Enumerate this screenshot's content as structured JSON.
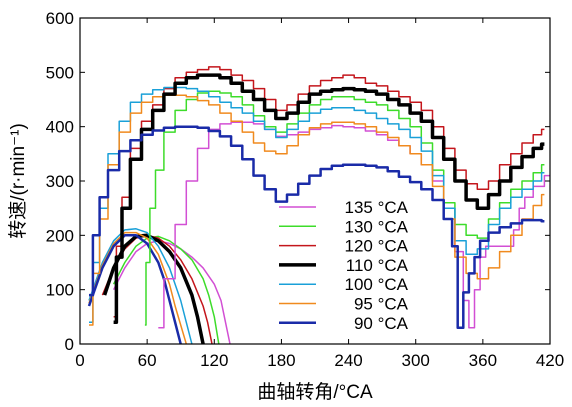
{
  "chart_data": {
    "type": "line",
    "xlabel": "曲轴转角/°CA",
    "ylabel": "转速/(r·min⁻¹)",
    "xlim": [
      0,
      420
    ],
    "ylim": [
      0,
      600
    ],
    "x_ticks": [
      "0",
      "60",
      "120",
      "180",
      "240",
      "300",
      "360",
      "420"
    ],
    "y_ticks": [
      "0",
      "100",
      "200",
      "300",
      "400",
      "500",
      "600"
    ],
    "grid": false,
    "legend_position": "center-right",
    "series": [
      {
        "name": "135 °CA",
        "color": "#d24fd4",
        "width": 1.5,
        "x": [
          70,
          80,
          90,
          100,
          110,
          120,
          130,
          140,
          150,
          160,
          170,
          180,
          190,
          200,
          210,
          220,
          230,
          240,
          250,
          260,
          270,
          280,
          290,
          300,
          310,
          320,
          330,
          340,
          345,
          350,
          355,
          360,
          365,
          370,
          375,
          380,
          385,
          390,
          395,
          400,
          410,
          420
        ],
        "y": [
          30,
          120,
          220,
          300,
          360,
          395,
          405,
          408,
          408,
          405,
          395,
          382,
          385,
          390,
          395,
          398,
          402,
          400,
          398,
          392,
          385,
          375,
          365,
          350,
          330,
          300,
          250,
          170,
          80,
          30,
          100,
          160,
          180,
          180,
          180,
          180,
          180,
          210,
          250,
          270,
          290,
          310
        ]
      },
      {
        "name": "130 °CA",
        "color": "#3ddc2a",
        "width": 1.5,
        "x": [
          58,
          60,
          65,
          70,
          80,
          90,
          100,
          110,
          120,
          130,
          140,
          150,
          160,
          170,
          180,
          190,
          200,
          210,
          220,
          230,
          240,
          250,
          260,
          270,
          280,
          290,
          300,
          310,
          320,
          330,
          340,
          350,
          360,
          370,
          380,
          390,
          400,
          410,
          415
        ],
        "y": [
          35,
          150,
          250,
          320,
          390,
          430,
          450,
          462,
          465,
          462,
          455,
          440,
          420,
          400,
          390,
          405,
          425,
          440,
          450,
          455,
          455,
          450,
          445,
          440,
          430,
          415,
          400,
          370,
          320,
          260,
          220,
          200,
          195,
          230,
          260,
          285,
          300,
          315,
          330
        ]
      },
      {
        "name": "120 °CA",
        "color": "#c4161c",
        "width": 1.5,
        "x": [
          30,
          35,
          40,
          50,
          60,
          70,
          80,
          90,
          100,
          110,
          120,
          130,
          140,
          150,
          160,
          170,
          180,
          190,
          200,
          210,
          220,
          230,
          240,
          250,
          260,
          270,
          280,
          290,
          300,
          310,
          320,
          330,
          340,
          350,
          360,
          370,
          380,
          390,
          400,
          410,
          415
        ],
        "y": [
          50,
          180,
          270,
          360,
          410,
          440,
          470,
          490,
          500,
          505,
          510,
          505,
          495,
          485,
          470,
          450,
          430,
          440,
          460,
          475,
          485,
          490,
          495,
          490,
          480,
          475,
          465,
          455,
          445,
          430,
          400,
          360,
          320,
          295,
          285,
          300,
          330,
          350,
          370,
          385,
          395
        ]
      },
      {
        "name": "110 °CA",
        "color": "#000000",
        "width": 3.5,
        "x": [
          30,
          35,
          40,
          50,
          60,
          70,
          80,
          90,
          100,
          110,
          120,
          130,
          140,
          150,
          160,
          170,
          180,
          190,
          200,
          210,
          220,
          230,
          240,
          250,
          260,
          270,
          280,
          290,
          300,
          310,
          320,
          330,
          340,
          350,
          360,
          370,
          380,
          390,
          400,
          410,
          415
        ],
        "y": [
          40,
          160,
          250,
          340,
          395,
          430,
          460,
          480,
          490,
          495,
          495,
          490,
          480,
          465,
          450,
          430,
          415,
          425,
          445,
          460,
          465,
          468,
          470,
          468,
          465,
          460,
          450,
          440,
          425,
          410,
          380,
          340,
          300,
          265,
          250,
          275,
          300,
          325,
          345,
          360,
          368
        ]
      },
      {
        "name": "100 °CA",
        "color": "#1aa0d8",
        "width": 1.5,
        "x": [
          8,
          15,
          20,
          30,
          40,
          50,
          60,
          70,
          80,
          90,
          100,
          110,
          120,
          130,
          140,
          150,
          160,
          170,
          180,
          190,
          200,
          210,
          220,
          230,
          240,
          250,
          260,
          270,
          280,
          290,
          300,
          310,
          320,
          330,
          340,
          350,
          360,
          370,
          380,
          390,
          400,
          410,
          415
        ],
        "y": [
          40,
          150,
          250,
          350,
          410,
          445,
          460,
          468,
          472,
          472,
          470,
          465,
          455,
          445,
          435,
          425,
          410,
          395,
          380,
          395,
          410,
          425,
          432,
          435,
          435,
          430,
          425,
          415,
          405,
          395,
          380,
          355,
          310,
          250,
          190,
          165,
          175,
          220,
          250,
          270,
          285,
          300,
          315
        ]
      },
      {
        "name": "95 °CA",
        "color": "#f08a1e",
        "width": 1.5,
        "x": [
          8,
          15,
          20,
          30,
          40,
          50,
          60,
          70,
          80,
          90,
          100,
          110,
          120,
          130,
          140,
          150,
          160,
          170,
          180,
          190,
          200,
          210,
          220,
          230,
          240,
          250,
          260,
          270,
          280,
          290,
          300,
          310,
          320,
          330,
          340,
          350,
          360,
          370,
          380,
          390,
          400,
          410,
          415
        ],
        "y": [
          35,
          130,
          230,
          330,
          390,
          425,
          445,
          455,
          458,
          458,
          455,
          448,
          440,
          425,
          410,
          390,
          370,
          355,
          350,
          365,
          385,
          398,
          405,
          408,
          408,
          405,
          400,
          390,
          380,
          365,
          350,
          330,
          290,
          230,
          160,
          130,
          120,
          140,
          170,
          200,
          230,
          255,
          275
        ]
      },
      {
        "name": "90 °CA",
        "color": "#1a2ba8",
        "width": 2.5,
        "x": [
          8,
          15,
          20,
          30,
          40,
          50,
          60,
          70,
          80,
          90,
          100,
          110,
          120,
          130,
          140,
          150,
          160,
          170,
          180,
          190,
          200,
          210,
          220,
          230,
          240,
          250,
          260,
          270,
          280,
          290,
          300,
          310,
          320,
          330,
          335,
          340,
          345,
          350,
          355,
          360,
          370,
          380,
          390,
          400,
          410,
          415
        ],
        "y": [
          90,
          200,
          270,
          320,
          355,
          375,
          385,
          393,
          398,
          400,
          400,
          398,
          392,
          382,
          365,
          340,
          310,
          285,
          262,
          275,
          295,
          310,
          322,
          328,
          330,
          330,
          328,
          325,
          318,
          308,
          298,
          285,
          265,
          230,
          180,
          30,
          95,
          130,
          160,
          190,
          205,
          215,
          222,
          228,
          228,
          226
        ]
      }
    ],
    "rundown_curves": [
      {
        "series": "135 °CA",
        "color": "#d24fd4",
        "x": [
          30,
          40,
          50,
          60,
          70,
          80,
          90,
          100,
          110,
          120,
          126,
          130,
          134
        ],
        "y": [
          100,
          140,
          170,
          185,
          190,
          185,
          175,
          160,
          140,
          110,
          80,
          40,
          0
        ]
      },
      {
        "series": "130 °CA",
        "color": "#3ddc2a",
        "x": [
          30,
          40,
          50,
          60,
          70,
          80,
          90,
          100,
          110,
          115,
          120,
          124
        ],
        "y": [
          110,
          150,
          180,
          195,
          198,
          190,
          175,
          155,
          120,
          90,
          50,
          0
        ]
      },
      {
        "series": "120 °CA",
        "color": "#c4161c",
        "x": [
          20,
          30,
          40,
          50,
          60,
          70,
          80,
          90,
          100,
          110,
          114,
          118
        ],
        "y": [
          90,
          140,
          175,
          195,
          200,
          195,
          180,
          155,
          120,
          70,
          40,
          0
        ]
      },
      {
        "series": "110 °CA",
        "color": "#000000",
        "x": [
          22,
          30,
          40,
          50,
          60,
          70,
          80,
          90,
          100,
          105,
          110
        ],
        "y": [
          90,
          140,
          180,
          198,
          200,
          190,
          170,
          140,
          90,
          50,
          0
        ]
      },
      {
        "series": "100 °CA",
        "color": "#1aa0d8",
        "x": [
          8,
          20,
          30,
          40,
          50,
          60,
          70,
          80,
          90,
          95,
          100
        ],
        "y": [
          80,
          150,
          190,
          210,
          212,
          205,
          180,
          140,
          80,
          40,
          0
        ]
      },
      {
        "series": "95 °CA",
        "color": "#f08a1e",
        "x": [
          8,
          20,
          30,
          40,
          50,
          60,
          70,
          80,
          85,
          90,
          95
        ],
        "y": [
          75,
          145,
          185,
          205,
          205,
          195,
          165,
          110,
          70,
          35,
          0
        ]
      },
      {
        "series": "90 °CA",
        "color": "#1a2ba8",
        "x": [
          8,
          20,
          30,
          40,
          50,
          60,
          70,
          75,
          80,
          85,
          90
        ],
        "y": [
          70,
          140,
          180,
          200,
          200,
          185,
          150,
          120,
          80,
          40,
          0
        ]
      }
    ]
  }
}
